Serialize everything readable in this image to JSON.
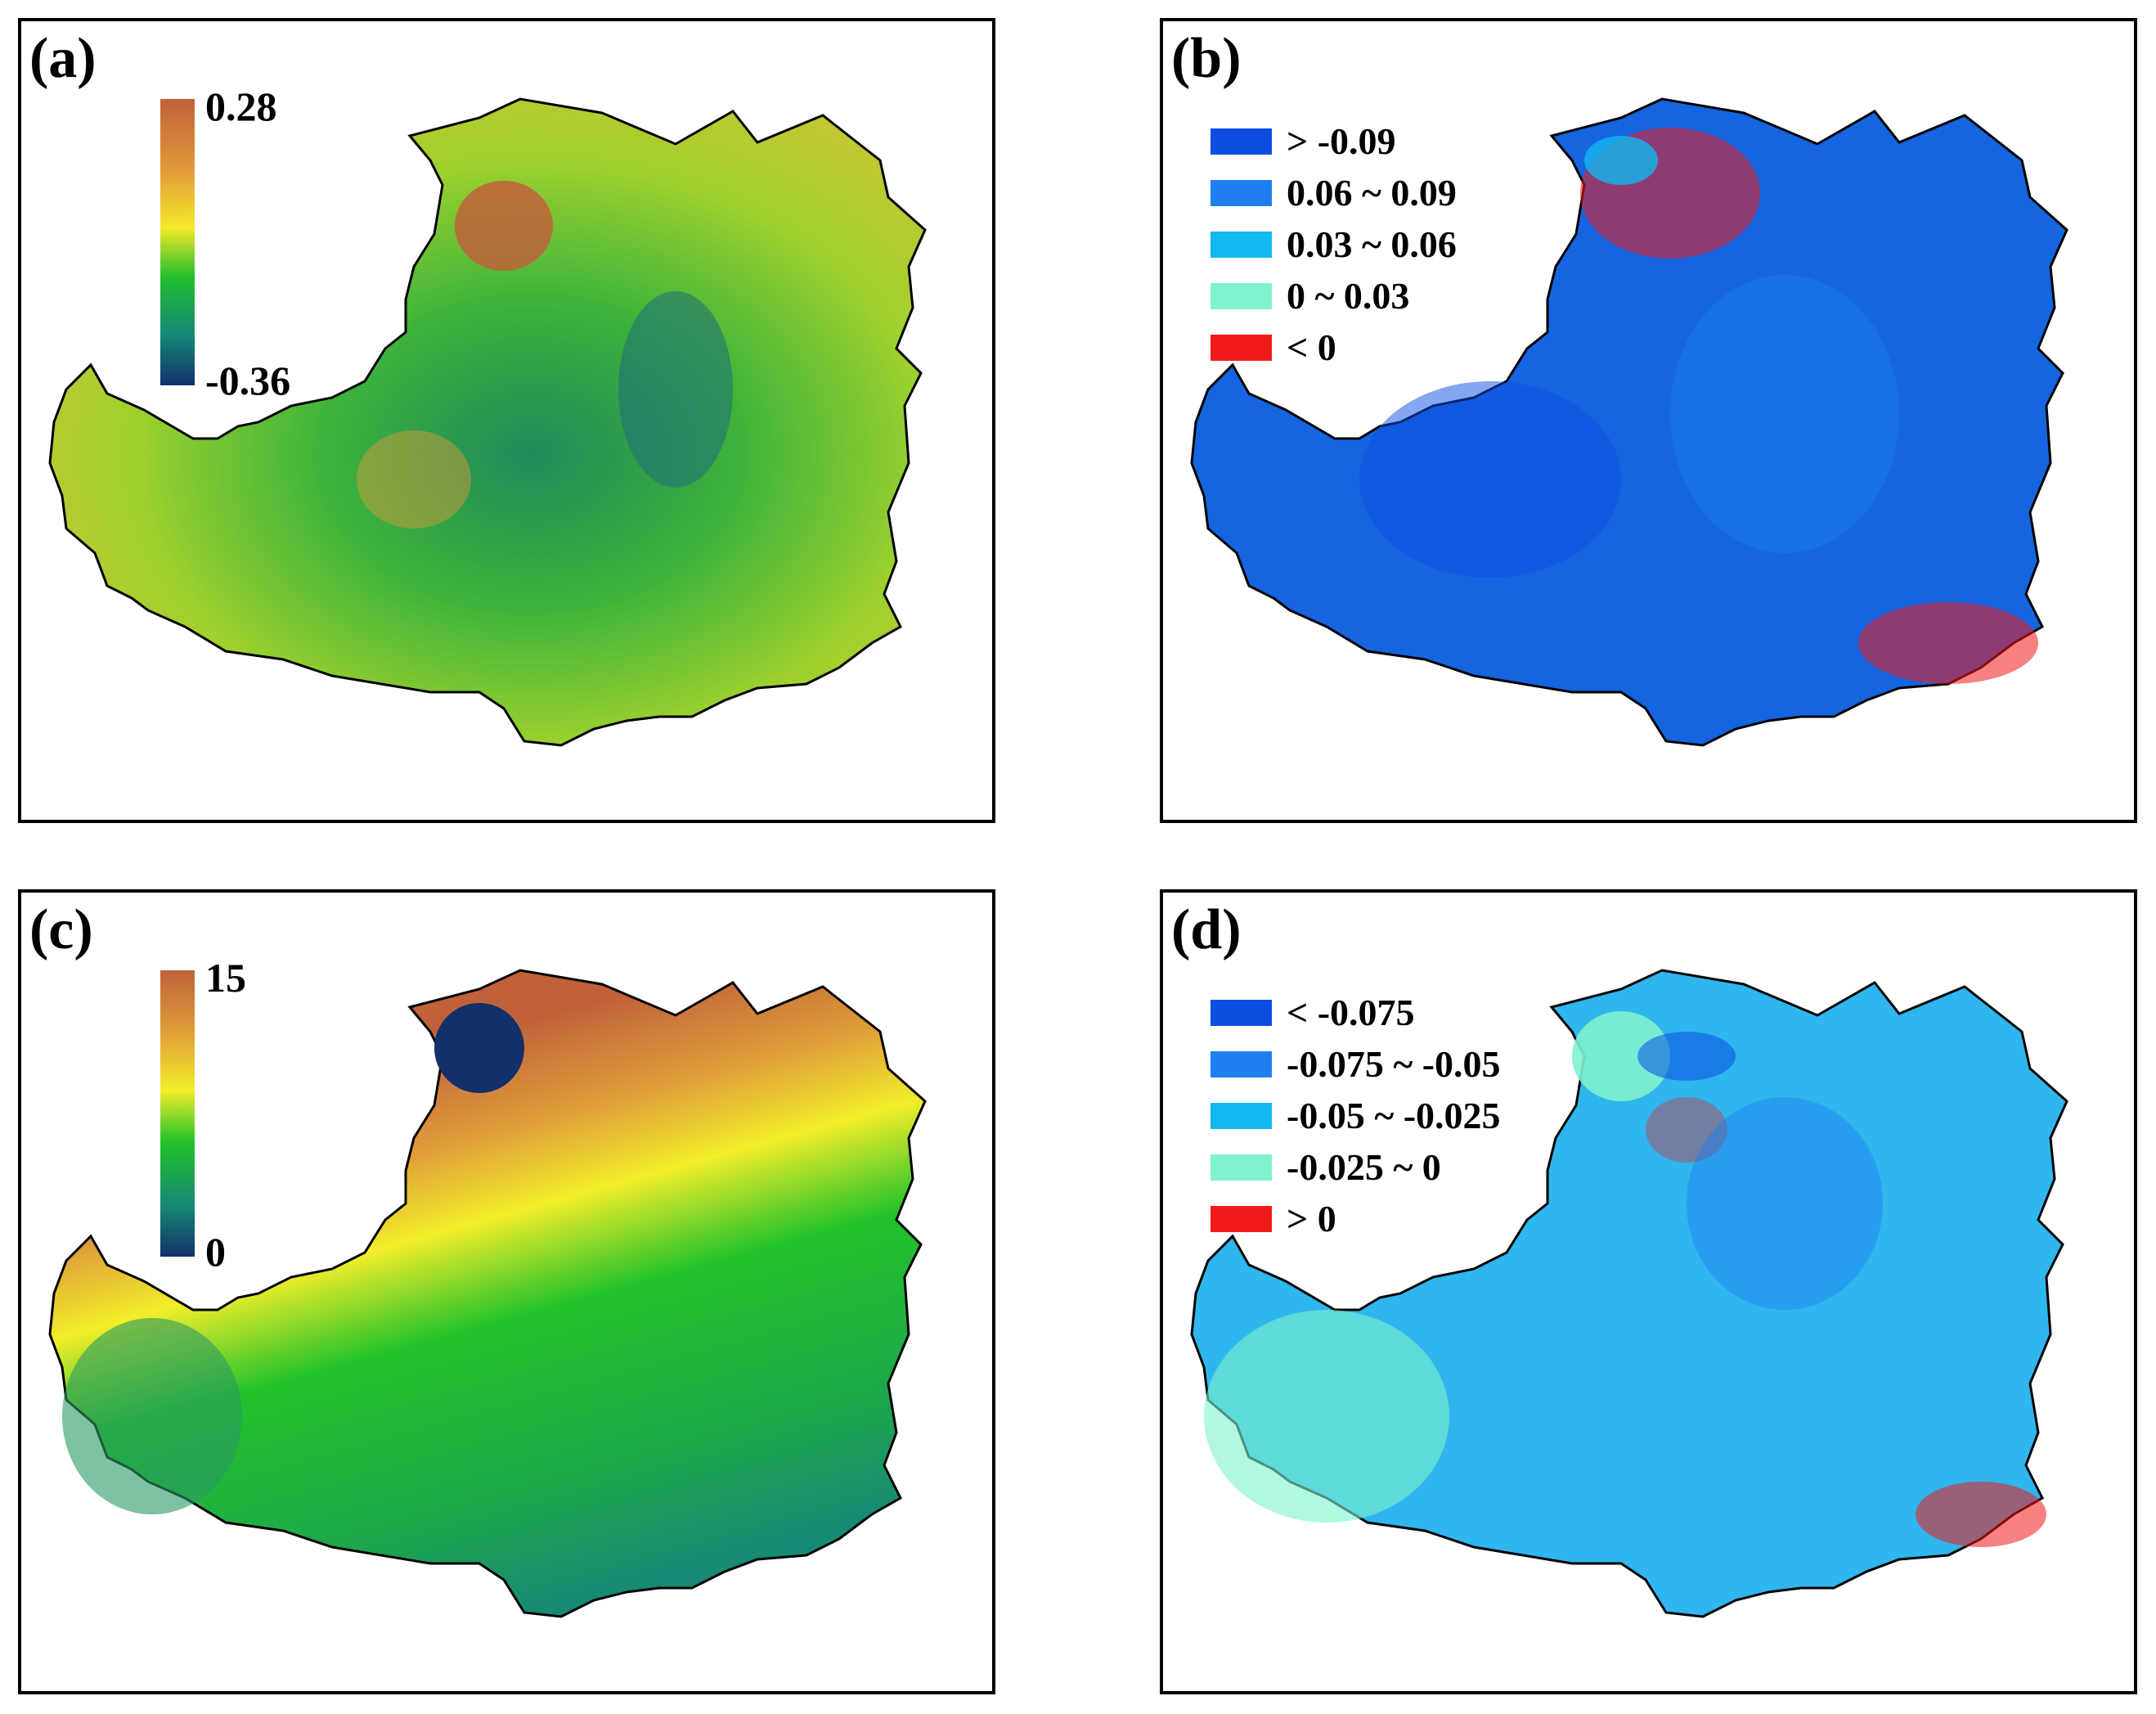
{
  "panels": {
    "a": {
      "label": "(a)",
      "colorbar": {
        "max": "0.28",
        "min": "-0.36"
      },
      "colors": [
        "#c0613a",
        "#e29a3a",
        "#f4ea2a",
        "#24bf2c",
        "#148a78",
        "#12306a"
      ]
    },
    "b": {
      "label": "(b)",
      "legend": [
        {
          "text": "> -0.09",
          "color": "#0a4fe0"
        },
        {
          "text": "0.06 ~ 0.09",
          "color": "#1f7ff0"
        },
        {
          "text": "0.03 ~ 0.06",
          "color": "#12b8f0"
        },
        {
          "text": "0 ~ 0.03",
          "color": "#7ff2cf"
        },
        {
          "text": "< 0",
          "color": "#f01a1a"
        }
      ]
    },
    "c": {
      "label": "(c)",
      "colorbar": {
        "max": "15",
        "min": "0"
      },
      "colors": [
        "#c0613a",
        "#e0a039",
        "#f2ee2a",
        "#22c22a",
        "#168a72",
        "#12306a"
      ]
    },
    "d": {
      "label": "(d)",
      "legend": [
        {
          "text": "< -0.075",
          "color": "#0a4fe0"
        },
        {
          "text": "-0.075 ~ -0.05",
          "color": "#1f7ff0"
        },
        {
          "text": "-0.05 ~ -0.025",
          "color": "#12b8f0"
        },
        {
          "text": "-0.025 ~ 0",
          "color": "#7ff2cf"
        },
        {
          "text": "> 0",
          "color": "#f01a1a"
        }
      ]
    }
  }
}
